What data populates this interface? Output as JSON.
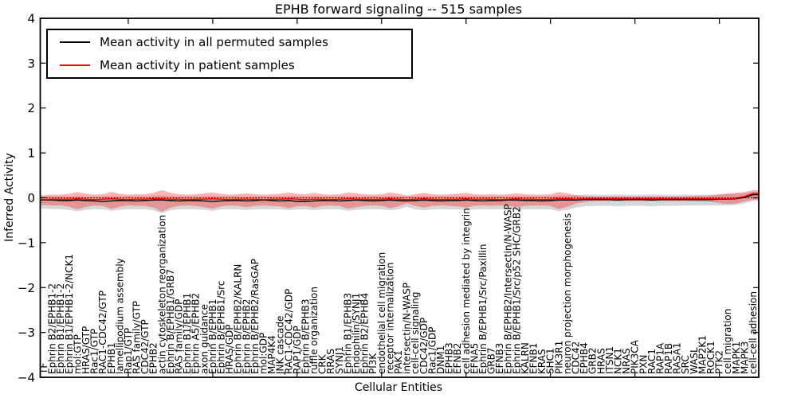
{
  "chart": {
    "title": "EPHB forward signaling -- 515 samples",
    "xlabel": "Cellular Entities",
    "ylabel": "Inferred Activity"
  },
  "legend": {
    "items": [
      {
        "label": "Mean activity in all permuted samples",
        "color": "#000000"
      },
      {
        "label": "Mean activity in patient samples",
        "color": "#ff0000"
      }
    ]
  },
  "chart_data": {
    "type": "line",
    "title": "EPHB forward signaling -- 515 samples",
    "xlabel": "Cellular Entities",
    "ylabel": "Inferred Activity",
    "ylim": [
      -4,
      4
    ],
    "grid": false,
    "legend_position": "upper left",
    "yticks": [
      4,
      3,
      2,
      1,
      0,
      -1,
      -2,
      -3,
      -4
    ],
    "ytick_labels": [
      "4",
      "3",
      "2",
      "1",
      "0",
      "−1",
      "−2",
      "−3",
      "−4"
    ],
    "x_major_tick_step": 10,
    "zero_line": 0,
    "x_categories": [
      "TF",
      "Ephrin B2/EPHB1-2",
      "Ephrin B1/EPHB1-2",
      "Ephrin B1/EPHB1-2/NCK1",
      "mol:GTP",
      "HRAS/GTP",
      "Rac1/GTP",
      "RAC1-CDC42/GTP",
      "EPHB1",
      "lamellipodium assembly",
      "Rap1/GTP",
      "RAS family/GTP",
      "CDC42/GTP",
      "EPHB2",
      "actin cytoskeleton reorganization",
      "Ephrin B/EPHB1/GRB7",
      "RAS family/GDP",
      "Ephrin B1/EPHB1",
      "Ephrin A5/EPHB2",
      "axon guidance",
      "Ephrin B/EPHB1",
      "Ephrin B/EPHB1/Src",
      "HRAS/GDP",
      "Ephrin B/EPHB2/KALRN",
      "Ephrin B/EPHB2",
      "Ephrin B/EPHB2/RasGAP",
      "mol:GDP",
      "MAP4K4",
      "JNK cascade",
      "RAC1-CDC42/GDP",
      "RAP1/GDP",
      "Ephrin B/EPHB3",
      "ruffle organization",
      "CRK",
      "RRAS",
      "SYNJ1",
      "Ephrin B1/EPHB3",
      "Endophilin/SYNJ1",
      "Ephrin B2/EPHB4",
      "PI3K",
      "endothelial cell migration",
      "receptor internalization",
      "PAK1",
      "intersectin/N-WASP",
      "cell-cell signaling",
      "CDC42/GDP",
      "Rac1/GDP",
      "DNM1",
      "EPHB3",
      "EFNB2",
      "cell adhesion mediated by integrin",
      "EFNA5",
      "Ephrin B/EPHB1/Src/Paxillin",
      "GRB7",
      "EFNB3",
      "Ephrin B/EPHB2/Intersectin/N-WASP",
      "Ephrin B/EPHB1/Src/p52 SHC/GRB2",
      "KALRN",
      "EFNB1",
      "KRAS",
      "SHC1",
      "PIK3R1",
      "neuron projection morphogenesis",
      "CDC42",
      "EPHB4",
      "GRB2",
      "HRAS",
      "ITSN1",
      "NCK1",
      "NRAS",
      "PIK3CA",
      "PXN",
      "RAC1",
      "RAP1A",
      "RAP1B",
      "RASA1",
      "SRC",
      "WASL",
      "MAP2K1",
      "ROCK1",
      "PTK2",
      "cell migration",
      "MAPK1",
      "MAPK3",
      "cell-cell adhesion"
    ],
    "series": [
      {
        "name": "Mean activity in all permuted samples",
        "color": "#000000",
        "band_color": "rgba(110,110,110,0.28)",
        "values": [
          -0.05,
          -0.05,
          -0.06,
          -0.06,
          -0.05,
          -0.06,
          -0.07,
          -0.08,
          -0.07,
          -0.06,
          -0.06,
          -0.07,
          -0.06,
          -0.05,
          -0.05,
          -0.06,
          -0.07,
          -0.06,
          -0.06,
          -0.07,
          -0.08,
          -0.07,
          -0.06,
          -0.06,
          -0.07,
          -0.06,
          -0.05,
          -0.06,
          -0.07,
          -0.06,
          -0.08,
          -0.08,
          -0.07,
          -0.06,
          -0.06,
          -0.07,
          -0.06,
          -0.05,
          -0.06,
          -0.07,
          -0.06,
          -0.05,
          -0.06,
          -0.07,
          -0.06,
          -0.05,
          -0.06,
          -0.07,
          -0.06,
          -0.06,
          -0.05,
          -0.06,
          -0.07,
          -0.06,
          -0.06,
          -0.05,
          -0.05,
          -0.06,
          -0.06,
          -0.07,
          -0.06,
          -0.05,
          -0.05,
          -0.05,
          -0.04,
          -0.04,
          -0.04,
          -0.04,
          -0.05,
          -0.04,
          -0.04,
          -0.04,
          -0.05,
          -0.04,
          -0.04,
          -0.04,
          -0.04,
          -0.04,
          -0.04,
          -0.04,
          -0.03,
          -0.03,
          -0.02,
          0.01,
          0.07
        ],
        "band_upper": [
          0.03,
          0.03,
          0.03,
          0.03,
          0.04,
          0.03,
          0.03,
          0.03,
          0.04,
          0.03,
          0.03,
          0.03,
          0.03,
          0.04,
          0.05,
          0.04,
          0.03,
          0.03,
          0.03,
          0.03,
          0.04,
          0.03,
          0.03,
          0.03,
          0.03,
          0.03,
          0.03,
          0.03,
          0.03,
          0.04,
          0.03,
          0.03,
          0.04,
          0.03,
          0.03,
          0.03,
          0.04,
          0.03,
          0.03,
          0.03,
          0.03,
          0.04,
          0.03,
          0.03,
          0.03,
          0.04,
          0.03,
          0.03,
          0.03,
          0.03,
          0.04,
          0.03,
          0.03,
          0.03,
          0.03,
          0.03,
          0.04,
          0.03,
          0.03,
          0.03,
          0.03,
          0.05,
          0.05,
          0.06,
          0.07,
          0.07,
          0.07,
          0.07,
          0.08,
          0.07,
          0.07,
          0.07,
          0.08,
          0.07,
          0.07,
          0.07,
          0.07,
          0.07,
          0.07,
          0.07,
          0.07,
          0.08,
          0.09,
          0.1,
          0.13
        ],
        "band_lower": [
          -0.24,
          -0.25,
          -0.25,
          -0.27,
          -0.3,
          -0.27,
          -0.25,
          -0.26,
          -0.29,
          -0.27,
          -0.25,
          -0.26,
          -0.26,
          -0.28,
          -0.34,
          -0.28,
          -0.26,
          -0.25,
          -0.26,
          -0.27,
          -0.29,
          -0.26,
          -0.25,
          -0.26,
          -0.27,
          -0.26,
          -0.25,
          -0.26,
          -0.26,
          -0.28,
          -0.26,
          -0.26,
          -0.28,
          -0.26,
          -0.25,
          -0.26,
          -0.29,
          -0.27,
          -0.26,
          -0.25,
          -0.26,
          -0.28,
          -0.26,
          -0.2,
          -0.26,
          -0.28,
          -0.26,
          -0.25,
          -0.26,
          -0.26,
          -0.28,
          -0.26,
          -0.25,
          -0.26,
          -0.25,
          -0.26,
          -0.27,
          -0.26,
          -0.25,
          -0.25,
          -0.26,
          -0.3,
          -0.27,
          -0.22,
          -0.19,
          -0.18,
          -0.18,
          -0.18,
          -0.19,
          -0.18,
          -0.18,
          -0.18,
          -0.19,
          -0.18,
          -0.18,
          -0.18,
          -0.17,
          -0.17,
          -0.17,
          -0.17,
          -0.17,
          -0.17,
          -0.16,
          -0.12,
          -0.07
        ]
      },
      {
        "name": "Mean activity in patient samples",
        "color": "#ff0000",
        "band_color": "rgba(255,0,0,0.30)",
        "values": [
          -0.04,
          -0.03,
          -0.03,
          -0.03,
          -0.02,
          -0.03,
          -0.04,
          -0.03,
          -0.02,
          -0.03,
          -0.04,
          -0.03,
          -0.03,
          -0.02,
          -0.02,
          -0.03,
          -0.03,
          -0.04,
          -0.03,
          -0.03,
          -0.02,
          -0.03,
          -0.04,
          -0.03,
          -0.03,
          -0.03,
          -0.04,
          -0.03,
          -0.03,
          -0.02,
          -0.03,
          -0.04,
          -0.03,
          -0.03,
          -0.04,
          -0.03,
          -0.02,
          -0.03,
          -0.03,
          -0.04,
          -0.03,
          -0.02,
          -0.03,
          -0.04,
          -0.03,
          -0.02,
          -0.03,
          -0.04,
          -0.03,
          -0.03,
          -0.02,
          -0.03,
          -0.03,
          -0.03,
          -0.04,
          -0.03,
          -0.02,
          -0.03,
          -0.03,
          -0.04,
          -0.03,
          -0.02,
          -0.02,
          -0.03,
          -0.02,
          -0.02,
          -0.02,
          -0.02,
          -0.02,
          -0.02,
          -0.02,
          -0.02,
          -0.02,
          -0.02,
          -0.02,
          -0.02,
          -0.02,
          -0.02,
          -0.02,
          -0.02,
          -0.02,
          -0.02,
          -0.01,
          0.03,
          0.1
        ],
        "band_upper": [
          0.06,
          0.07,
          0.07,
          0.09,
          0.13,
          0.09,
          0.07,
          0.08,
          0.13,
          0.09,
          0.07,
          0.08,
          0.08,
          0.11,
          0.17,
          0.11,
          0.08,
          0.07,
          0.08,
          0.1,
          0.12,
          0.09,
          0.07,
          0.08,
          0.1,
          0.08,
          0.07,
          0.08,
          0.09,
          0.12,
          0.09,
          0.08,
          0.11,
          0.08,
          0.07,
          0.08,
          0.12,
          0.1,
          0.08,
          0.07,
          0.08,
          0.12,
          0.09,
          0.05,
          0.08,
          0.11,
          0.08,
          0.07,
          0.08,
          0.09,
          0.11,
          0.08,
          0.07,
          0.08,
          0.07,
          0.08,
          0.1,
          0.08,
          0.07,
          0.07,
          0.08,
          0.13,
          0.1,
          0.06,
          0.04,
          0.03,
          0.03,
          0.03,
          0.03,
          0.03,
          0.03,
          0.03,
          0.03,
          0.03,
          0.03,
          0.03,
          0.03,
          0.04,
          0.04,
          0.05,
          0.08,
          0.1,
          0.11,
          0.13,
          0.17
        ],
        "band_lower": [
          -0.16,
          -0.17,
          -0.17,
          -0.2,
          -0.26,
          -0.2,
          -0.17,
          -0.18,
          -0.25,
          -0.2,
          -0.17,
          -0.18,
          -0.18,
          -0.22,
          -0.31,
          -0.22,
          -0.18,
          -0.17,
          -0.18,
          -0.21,
          -0.24,
          -0.19,
          -0.17,
          -0.18,
          -0.21,
          -0.18,
          -0.17,
          -0.18,
          -0.19,
          -0.23,
          -0.19,
          -0.18,
          -0.22,
          -0.18,
          -0.17,
          -0.18,
          -0.24,
          -0.21,
          -0.18,
          -0.17,
          -0.18,
          -0.23,
          -0.19,
          -0.12,
          -0.18,
          -0.22,
          -0.18,
          -0.17,
          -0.18,
          -0.19,
          -0.22,
          -0.18,
          -0.17,
          -0.18,
          -0.17,
          -0.18,
          -0.21,
          -0.18,
          -0.17,
          -0.17,
          -0.18,
          -0.25,
          -0.2,
          -0.13,
          -0.09,
          -0.07,
          -0.07,
          -0.07,
          -0.07,
          -0.07,
          -0.07,
          -0.07,
          -0.07,
          -0.07,
          -0.07,
          -0.07,
          -0.07,
          -0.08,
          -0.08,
          -0.09,
          -0.12,
          -0.14,
          -0.13,
          -0.08,
          -0.04
        ]
      }
    ]
  }
}
